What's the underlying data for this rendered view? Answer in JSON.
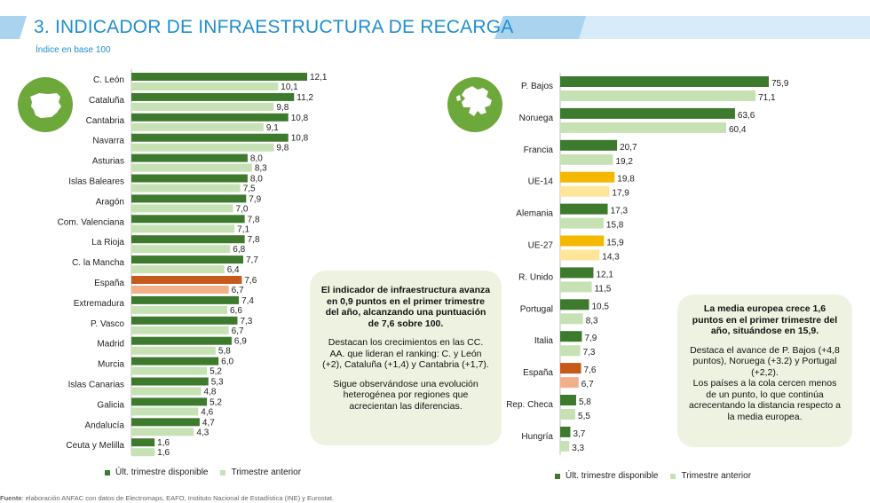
{
  "header": {
    "title": "3. INDICADOR DE INFRAESTRUCTURA DE RECARGA",
    "subtitle": "Índice en base 100"
  },
  "colors": {
    "title_blue": "#1f8fcf",
    "band_blue": "#a9d3ee",
    "current_green": "#3e7a2e",
    "previous_green": "#c6e2b4",
    "spain_current": "#c55a1b",
    "spain_previous": "#f2b08a",
    "eu_current": "#f5b800",
    "eu_previous": "#fde59a",
    "note_bg": "#eef3e1"
  },
  "icons": {
    "left": "spain-map-icon",
    "right": "europe-map-icon"
  },
  "chart_data": [
    {
      "type": "bar",
      "orientation": "horizontal",
      "categories": [
        "C. León",
        "Cataluña",
        "Cantabria",
        "Navarra",
        "Asturias",
        "Islas Baleares",
        "Aragón",
        "Com. Valenciana",
        "La Rioja",
        "C. la Mancha",
        "España",
        "Extremadura",
        "P. Vasco",
        "Madrid",
        "Murcia",
        "Islas Canarias",
        "Galicia",
        "Andalucía",
        "Ceuta y Melilla"
      ],
      "series": [
        {
          "name": "Últ. trimestre disponible",
          "values": [
            12.1,
            11.2,
            10.8,
            10.8,
            8.0,
            8.0,
            7.9,
            7.8,
            7.8,
            7.7,
            7.6,
            7.4,
            7.3,
            6.9,
            6.0,
            5.3,
            5.2,
            4.7,
            1.6
          ]
        },
        {
          "name": "Trimestre anterior",
          "values": [
            10.1,
            9.8,
            9.1,
            9.8,
            8.3,
            7.5,
            7.0,
            7.1,
            6.8,
            6.4,
            6.7,
            6.6,
            6.7,
            5.8,
            5.2,
            4.8,
            4.6,
            4.3,
            1.6
          ]
        }
      ],
      "value_labels": {
        "current": [
          "12,1",
          "11,2",
          "10,8",
          "10,8",
          "8,0",
          "8,0",
          "7,9",
          "7,8",
          "7,8",
          "7,7",
          "7,6",
          "7,4",
          "7,3",
          "6,9",
          "6,0",
          "5,3",
          "5,2",
          "4,7",
          "1,6"
        ],
        "previous": [
          "10,1",
          "9,8",
          "9,1",
          "9,8",
          "8,3",
          "7,5",
          "7,0",
          "7,1",
          "6,8",
          "6,4",
          "6,7",
          "6,6",
          "6,7",
          "5,8",
          "5,2",
          "4,8",
          "4,6",
          "4,3",
          "1,6"
        ]
      },
      "highlight": {
        "España": "spain"
      },
      "xlim": [
        0,
        12.1
      ],
      "grid": false,
      "legend": "bottom"
    },
    {
      "type": "bar",
      "orientation": "horizontal",
      "categories": [
        "P. Bajos",
        "Noruega",
        "Francia",
        "UE-14",
        "Alemania",
        "UE-27",
        "R. Unido",
        "Portugal",
        "Italia",
        "España",
        "Rep. Checa",
        "Hungría"
      ],
      "series": [
        {
          "name": "Últ. trimestre disponible",
          "values": [
            75.9,
            63.6,
            20.7,
            19.8,
            17.3,
            15.9,
            12.1,
            10.5,
            7.9,
            7.6,
            5.8,
            3.7
          ]
        },
        {
          "name": "Trimestre anterior",
          "values": [
            71.1,
            60.4,
            19.2,
            17.9,
            15.8,
            14.3,
            11.5,
            8.3,
            7.3,
            6.7,
            5.5,
            3.3
          ]
        }
      ],
      "value_labels": {
        "current": [
          "75,9",
          "63,6",
          "20,7",
          "19,8",
          "17,3",
          "15,9",
          "12,1",
          "10,5",
          "7,9",
          "7,6",
          "5,8",
          "3,7"
        ],
        "previous": [
          "71,1",
          "60,4",
          "19,2",
          "17,9",
          "15,8",
          "14,3",
          "11,5",
          "8,3",
          "7,3",
          "6,7",
          "5,5",
          "3,3"
        ]
      },
      "highlight": {
        "UE-14": "eu",
        "UE-27": "eu",
        "España": "spain"
      },
      "xlim": [
        0,
        75.9
      ],
      "grid": false,
      "legend": "bottom"
    }
  ],
  "notes": {
    "left": {
      "bold": "El indicador de infraestructura avanza en 0,9 puntos en el primer trimestre del año, alcanzando una puntuación de 7,6 sobre 100.",
      "p2": "Destacan los crecimientos en las CC. AA. que lideran el ranking: C. y León (+2), Cataluña (+1,4) y Cantabria (+1,7).",
      "p3": "Sigue observándose una evolución heterogénea por regiones que acrecientan las diferencias."
    },
    "right": {
      "bold": "La media europea crece 1,6 puntos en el primer trimestre del año, situándose en 15,9.",
      "p2": "Destaca el avance de P. Bajos (+4,8 puntos), Noruega (+3.2) y Portugal (+2,2).",
      "p3": "Los países a la cola cercen menos de un punto, lo que continúa acrecentando la distancia respecto a la media europea."
    }
  },
  "legend": {
    "current": "Últ. trimestre disponible",
    "previous": "Trimestre anterior"
  },
  "footer": {
    "label": "Fuente",
    "text": ": elaboración ANFAC con datos de Electromaps, EAFO, Instituto Nacional de Estadística (INE) y Eurostat."
  }
}
